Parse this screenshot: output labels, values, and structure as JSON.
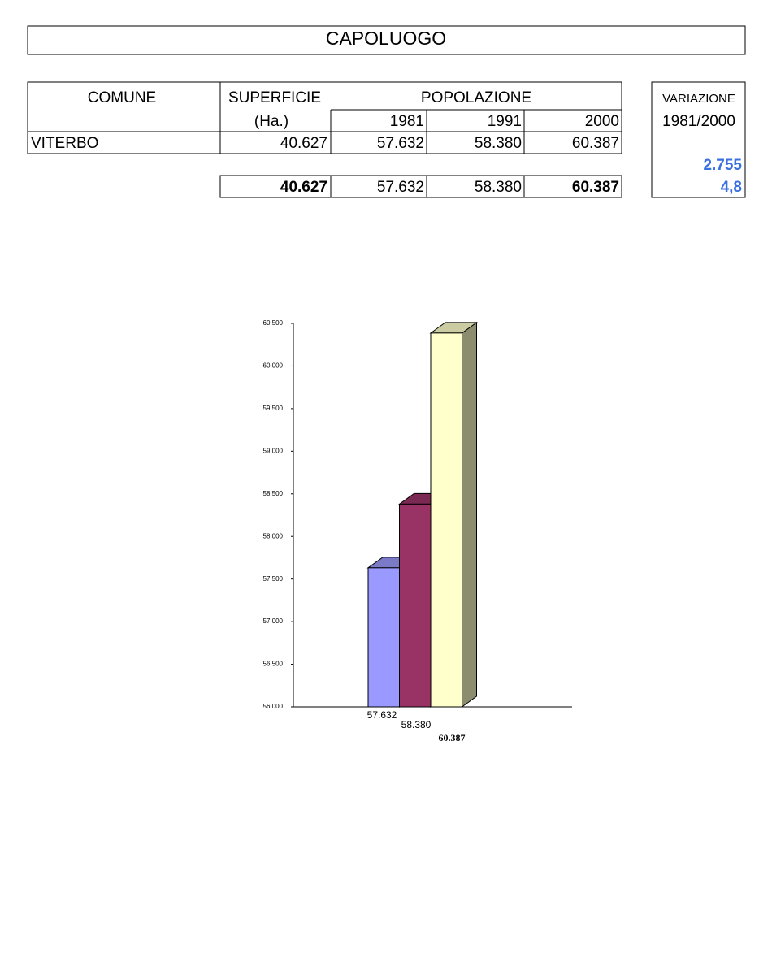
{
  "title": "CAPOLUOGO",
  "table": {
    "headers": {
      "comune": "COMUNE",
      "superficie": "SUPERFICIE",
      "unit": "(Ha.)",
      "popolazione": "POPOLAZIONE",
      "years": [
        "1981",
        "1991",
        "2000"
      ]
    },
    "rows": [
      [
        "VITERBO",
        "40.627",
        "57.632",
        "58.380",
        "60.387"
      ]
    ],
    "totals": [
      "40.627",
      "57.632",
      "58.380",
      "60.387"
    ]
  },
  "variazione": {
    "label": "VARIAZIONE",
    "period": "1981/2000",
    "absolute": "2.755",
    "percent": "4,8"
  },
  "chart_data": {
    "type": "bar3d",
    "values": [
      57632,
      58380,
      60387
    ],
    "value_labels": [
      "57.632",
      "58.380",
      "60.387"
    ],
    "colors": [
      "#9999ff",
      "#993366",
      "#ffffcc"
    ],
    "side_colors": [
      "#6b6bb3",
      "#6b2447",
      "#8c8c6e"
    ],
    "top_colors": [
      "#7a7ac7",
      "#7a2952",
      "#cccca3"
    ],
    "ylim": [
      56000,
      60500
    ],
    "yticks": [
      {
        "value": 56000,
        "label": "56.000"
      },
      {
        "value": 56500,
        "label": "56.500"
      },
      {
        "value": 57000,
        "label": "57.000"
      },
      {
        "value": 57500,
        "label": "57.500"
      },
      {
        "value": 58000,
        "label": "58.000"
      },
      {
        "value": 58500,
        "label": "58.500"
      },
      {
        "value": 59000,
        "label": "59.000"
      },
      {
        "value": 59500,
        "label": "59.500"
      },
      {
        "value": 60000,
        "label": "60.000"
      },
      {
        "value": 60500,
        "label": "60.500"
      }
    ]
  }
}
